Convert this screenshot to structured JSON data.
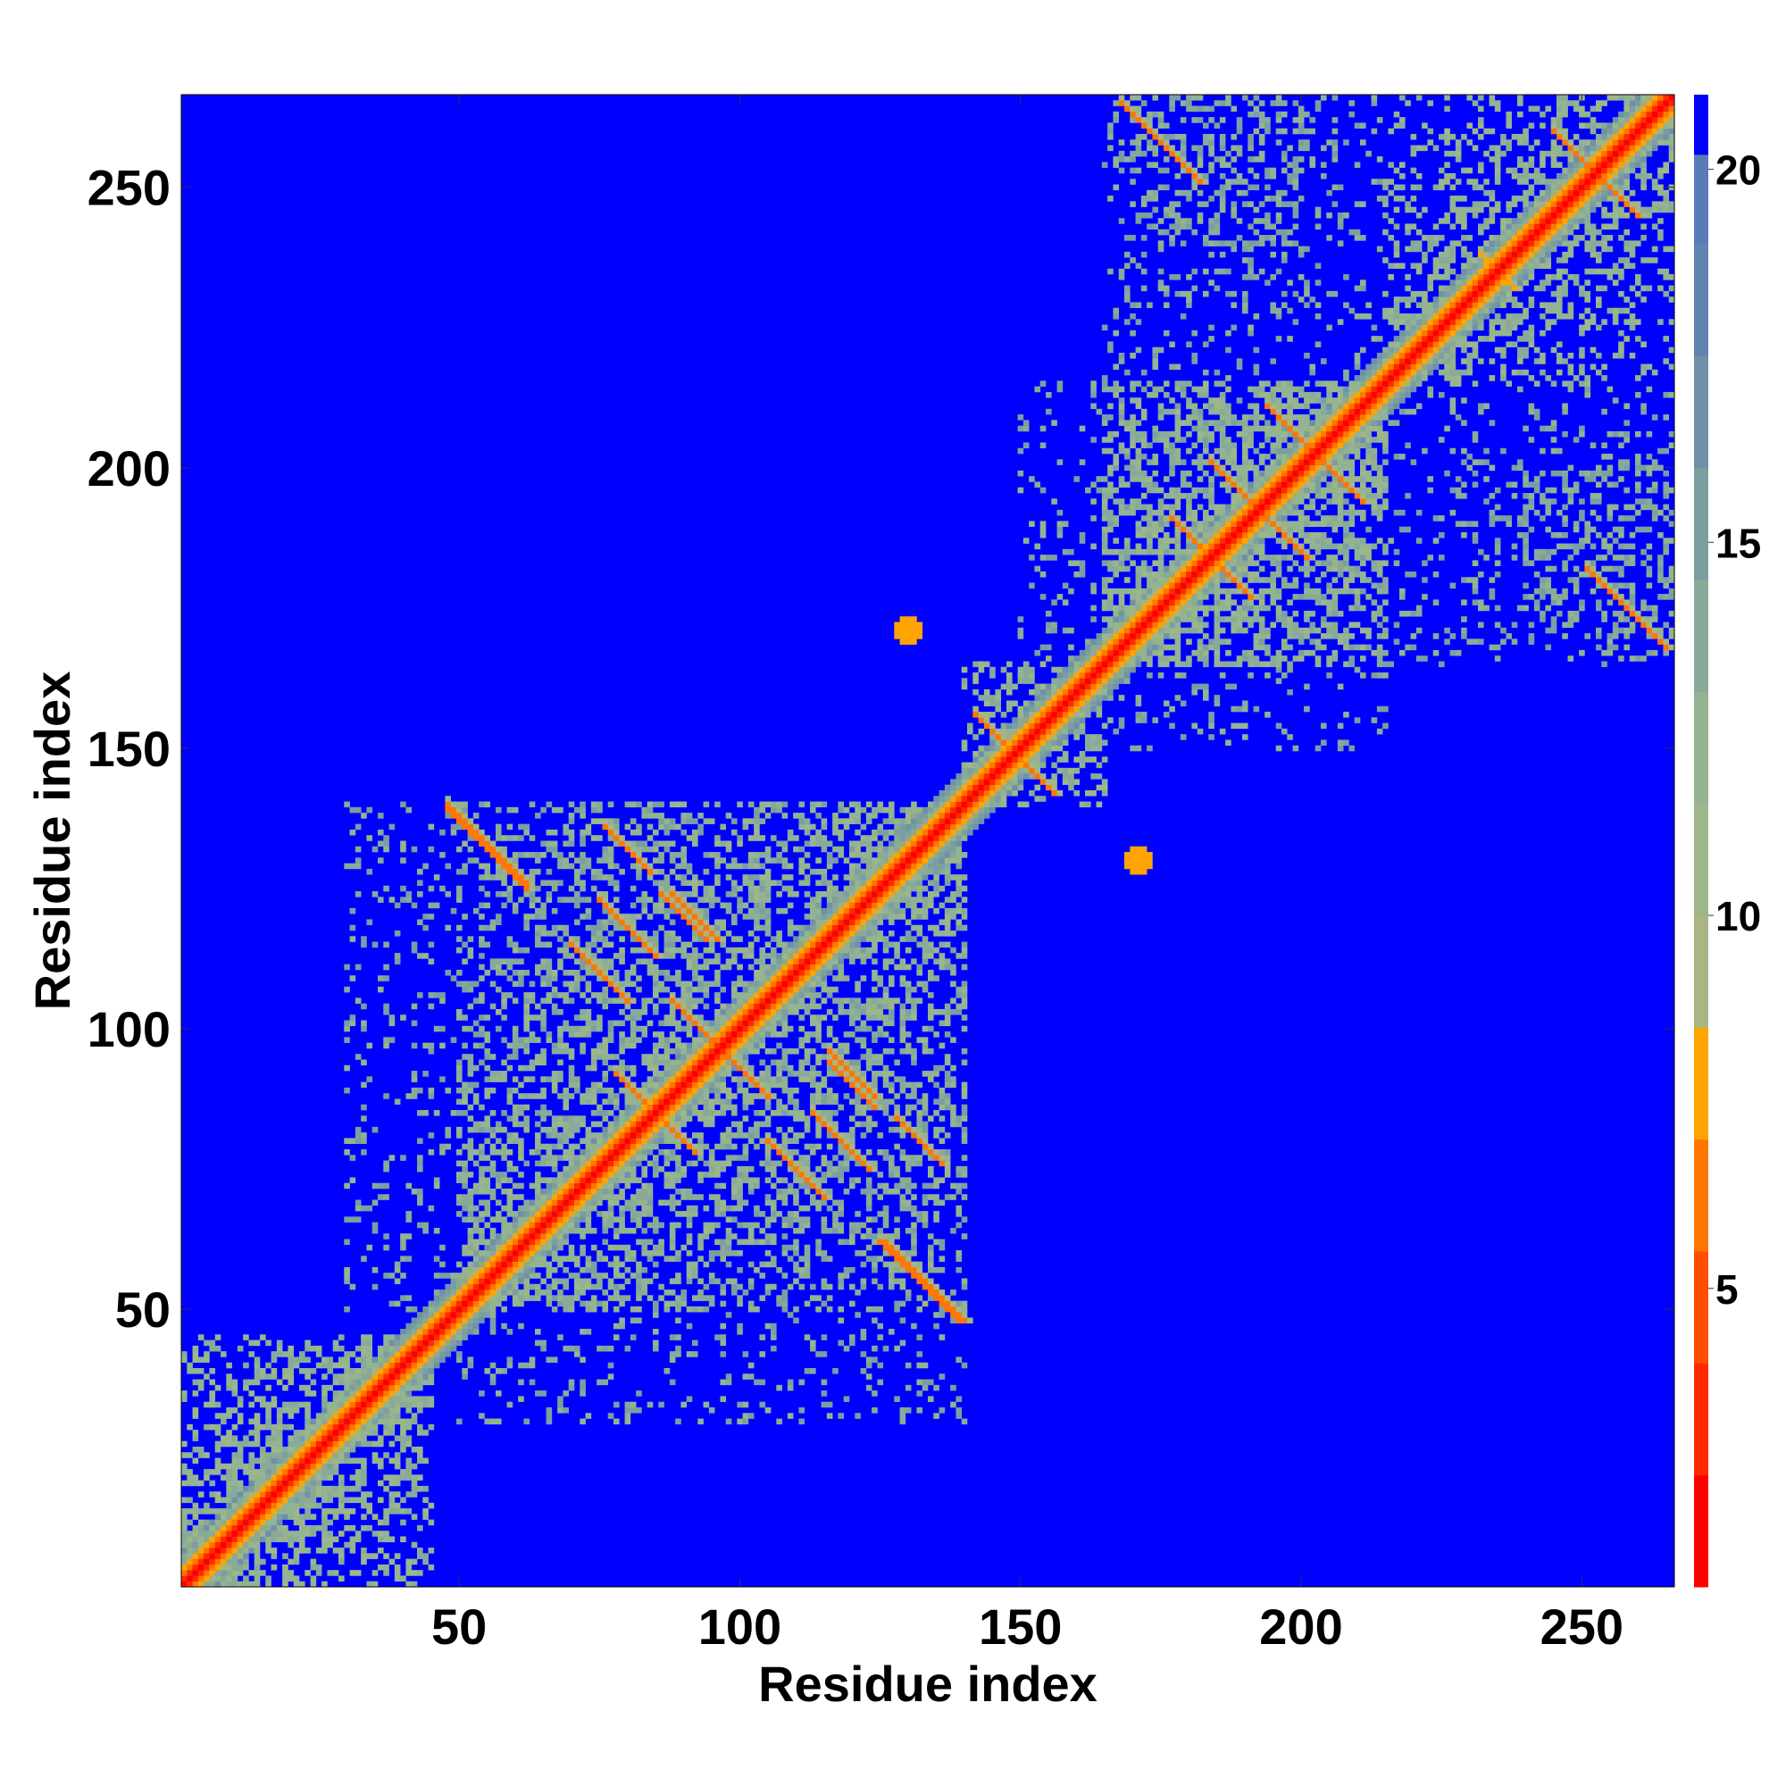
{
  "chart_data": {
    "type": "heatmap",
    "title": "",
    "xlabel": "Residue index",
    "ylabel": "Residue index",
    "xlim": [
      1,
      266
    ],
    "ylim": [
      1,
      266
    ],
    "x_ticks": [
      50,
      100,
      150,
      200,
      250
    ],
    "y_ticks": [
      50,
      100,
      150,
      200,
      250
    ],
    "x_tick_labels": [
      "50",
      "100",
      "150",
      "200",
      "250"
    ],
    "y_tick_labels": [
      "50",
      "100",
      "150",
      "200",
      "250"
    ],
    "background_value": 21,
    "colorbar": {
      "range": [
        1,
        21
      ],
      "ticks": [
        5,
        10,
        15,
        20
      ],
      "tick_labels": [
        "5",
        "10",
        "15",
        "20"
      ],
      "levels": [
        {
          "min": 1,
          "max": 2.5,
          "color": "#ff0000"
        },
        {
          "min": 2.5,
          "max": 4,
          "color": "#ff2a00"
        },
        {
          "min": 4,
          "max": 5.5,
          "color": "#ff4e00"
        },
        {
          "min": 5.5,
          "max": 7,
          "color": "#ff7600"
        },
        {
          "min": 7,
          "max": 8.5,
          "color": "#ffa400"
        },
        {
          "min": 8.5,
          "max": 10,
          "color": "#a9b582"
        },
        {
          "min": 10,
          "max": 11.5,
          "color": "#9db78a"
        },
        {
          "min": 11.5,
          "max": 13,
          "color": "#93b391"
        },
        {
          "min": 13,
          "max": 14.5,
          "color": "#8aaa98"
        },
        {
          "min": 14.5,
          "max": 16,
          "color": "#7c9ea0"
        },
        {
          "min": 16,
          "max": 17.5,
          "color": "#6e91a8"
        },
        {
          "min": 17.5,
          "max": 19,
          "color": "#6183b0"
        },
        {
          "min": 19,
          "max": 20.2,
          "color": "#5a7ab8"
        },
        {
          "min": 20.2,
          "max": 21,
          "color": "#0000ff"
        }
      ]
    },
    "diagonal": {
      "start": 1,
      "end": 266,
      "core_distance": 3.8,
      "band_half_width": 6
    },
    "features": [
      {
        "kind": "anti",
        "center": [
          55,
          132
        ],
        "half_length": 7,
        "value": 6
      },
      {
        "kind": "anti",
        "center": [
          133,
          55
        ],
        "half_length": 7,
        "value": 6
      },
      {
        "kind": "anti",
        "center": [
          80,
          118
        ],
        "half_length": 5,
        "value": 6
      },
      {
        "kind": "anti",
        "center": [
          118,
          80
        ],
        "half_length": 5,
        "value": 6
      },
      {
        "kind": "anti",
        "center": [
          92,
          120
        ],
        "half_length": 4,
        "value": 6
      },
      {
        "kind": "anti",
        "center": [
          120,
          92
        ],
        "half_length": 4,
        "value": 6
      },
      {
        "kind": "anti",
        "center": [
          83,
          87
        ],
        "half_length": 5,
        "value": 6
      },
      {
        "kind": "anti",
        "center": [
          87,
          83
        ],
        "half_length": 5,
        "value": 6
      },
      {
        "kind": "anti",
        "center": [
          93,
          100
        ],
        "half_length": 5,
        "value": 6
      },
      {
        "kind": "anti",
        "center": [
          100,
          93
        ],
        "half_length": 5,
        "value": 6
      },
      {
        "kind": "anti",
        "center": [
          110,
          75
        ],
        "half_length": 5,
        "value": 6
      },
      {
        "kind": "anti",
        "center": [
          75,
          110
        ],
        "half_length": 5,
        "value": 6
      },
      {
        "kind": "anti",
        "center": [
          120,
          90
        ],
        "half_length": 4,
        "value": 6
      },
      {
        "kind": "anti",
        "center": [
          132,
          80
        ],
        "half_length": 4,
        "value": 6
      },
      {
        "kind": "anti",
        "center": [
          80,
          132
        ],
        "half_length": 4,
        "value": 6
      },
      {
        "kind": "anti",
        "center": [
          132,
          55
        ],
        "half_length": 6,
        "value": 6
      },
      {
        "kind": "anti",
        "center": [
          148,
          150
        ],
        "half_length": 6,
        "value": 6
      },
      {
        "kind": "anti",
        "center": [
          150,
          148
        ],
        "half_length": 6,
        "value": 6
      },
      {
        "kind": "anti",
        "center": [
          183,
          185
        ],
        "half_length": 6,
        "value": 6
      },
      {
        "kind": "anti",
        "center": [
          185,
          183
        ],
        "half_length": 6,
        "value": 6
      },
      {
        "kind": "anti",
        "center": [
          190,
          195
        ],
        "half_length": 6,
        "value": 6
      },
      {
        "kind": "anti",
        "center": [
          195,
          190
        ],
        "half_length": 6,
        "value": 6
      },
      {
        "kind": "anti",
        "center": [
          200,
          205
        ],
        "half_length": 6,
        "value": 6
      },
      {
        "kind": "anti",
        "center": [
          205,
          200
        ],
        "half_length": 6,
        "value": 6
      },
      {
        "kind": "anti",
        "center": [
          175,
          258
        ],
        "half_length": 7,
        "value": 6
      },
      {
        "kind": "anti",
        "center": [
          258,
          175
        ],
        "half_length": 7,
        "value": 6
      },
      {
        "kind": "anti",
        "center": [
          250,
          255
        ],
        "half_length": 5,
        "value": 6
      },
      {
        "kind": "anti",
        "center": [
          255,
          250
        ],
        "half_length": 5,
        "value": 6
      },
      {
        "kind": "anti",
        "center": [
          235,
          235
        ],
        "half_length": 3,
        "value": 7
      },
      {
        "kind": "blob",
        "center": [
          130,
          171
        ],
        "radius": 2.5,
        "value": 7
      },
      {
        "kind": "blob",
        "center": [
          171,
          130
        ],
        "radius": 2.5,
        "value": 7
      }
    ],
    "domains": [
      {
        "range": [
          1,
          45
        ],
        "value": 11,
        "density": 0.45
      },
      {
        "range": [
          50,
          140
        ],
        "value": 11,
        "density": 0.3
      },
      {
        "range": [
          140,
          165
        ],
        "value": 11,
        "density": 0.35
      },
      {
        "range": [
          165,
          215
        ],
        "value": 11,
        "density": 0.38
      },
      {
        "range": [
          215,
          266
        ],
        "value": 11,
        "density": 0.32
      }
    ],
    "offdiag_regions": [
      {
        "x": [
          30,
          140
        ],
        "y": [
          50,
          140
        ],
        "value": 12,
        "density": 0.16
      },
      {
        "x": [
          50,
          140
        ],
        "y": [
          30,
          140
        ],
        "value": 12,
        "density": 0.16
      },
      {
        "x": [
          165,
          215
        ],
        "y": [
          150,
          266
        ],
        "value": 12,
        "density": 0.16
      },
      {
        "x": [
          150,
          266
        ],
        "y": [
          165,
          215
        ],
        "value": 12,
        "density": 0.16
      },
      {
        "x": [
          170,
          200
        ],
        "y": [
          240,
          266
        ],
        "value": 12,
        "density": 0.35
      },
      {
        "x": [
          240,
          266
        ],
        "y": [
          170,
          200
        ],
        "value": 12,
        "density": 0.35
      }
    ]
  }
}
